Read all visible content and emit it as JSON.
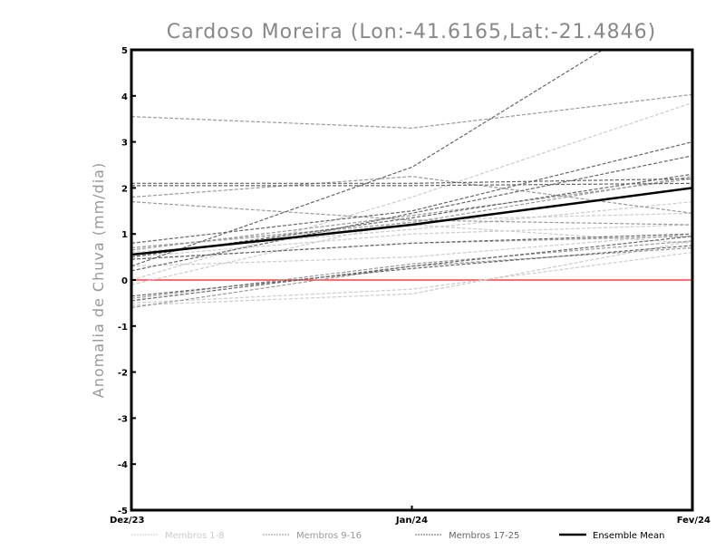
{
  "chart_data": {
    "type": "line",
    "title": "Cardoso Moreira (Lon:-41.6165,Lat:-21.4846)",
    "xlabel": "",
    "ylabel": "Anomalia de Chuva (mm/dia)",
    "categories": [
      "Dez/23",
      "Jan/24",
      "Fev/24"
    ],
    "ylim": [
      -5,
      5
    ],
    "yticks": [
      "-5",
      "-4",
      "-3",
      "-2",
      "-1",
      "0",
      "1",
      "2",
      "3",
      "4",
      "5"
    ],
    "reference_line": {
      "value": 0,
      "color": "#ff4040"
    },
    "groups": [
      {
        "name": "Membros 1-8",
        "color": "#cccccc",
        "members": [
          [
            0.0,
            1.8,
            3.85
          ],
          [
            0.5,
            1.0,
            1.2
          ],
          [
            -0.5,
            -0.2,
            0.6
          ],
          [
            -0.1,
            1.3,
            1.45
          ],
          [
            0.7,
            1.2,
            0.8
          ],
          [
            -0.55,
            -0.3,
            0.85
          ],
          [
            0.3,
            0.5,
            1.0
          ],
          [
            0.6,
            1.1,
            1.7
          ]
        ]
      },
      {
        "name": "Membros 9-16",
        "color": "#999999",
        "members": [
          [
            3.55,
            3.3,
            4.03
          ],
          [
            1.7,
            1.3,
            1.2
          ],
          [
            1.8,
            2.25,
            1.45
          ],
          [
            0.65,
            1.4,
            2.2
          ],
          [
            -0.4,
            0.35,
            0.85
          ],
          [
            0.45,
            0.8,
            0.95
          ],
          [
            0.7,
            1.25,
            2.25
          ],
          [
            -0.6,
            0.3,
            0.7
          ]
        ]
      },
      {
        "name": "Membros 17-25",
        "color": "#666666",
        "members": [
          [
            0.3,
            2.45,
            6.2
          ],
          [
            2.05,
            2.05,
            2.1
          ],
          [
            2.1,
            2.1,
            2.2
          ],
          [
            0.8,
            1.5,
            3.0
          ],
          [
            0.2,
            1.45,
            2.7
          ],
          [
            0.5,
            1.35,
            2.3
          ],
          [
            -0.45,
            0.3,
            0.95
          ],
          [
            -0.35,
            0.25,
            0.75
          ],
          [
            0.45,
            0.8,
            1.0
          ]
        ]
      }
    ],
    "ensemble_mean": {
      "name": "Ensemble Mean",
      "color": "#000000",
      "values": [
        0.55,
        1.2,
        2.0
      ]
    },
    "legend_position": "bottom"
  }
}
